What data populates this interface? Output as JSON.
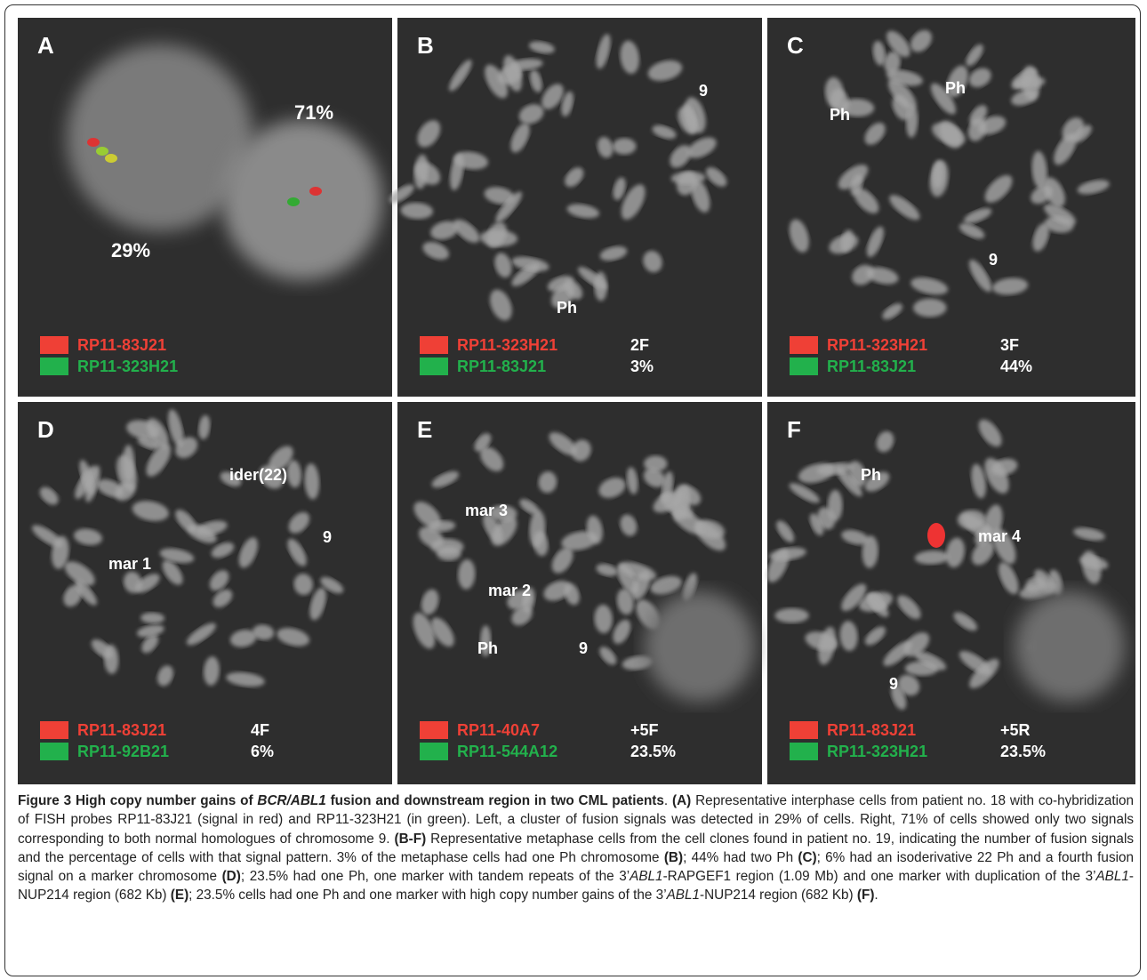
{
  "figure": {
    "panels": [
      {
        "letter": "A",
        "labels": [
          "71%",
          "29%"
        ],
        "probes": [
          {
            "name": "RP11-83J21",
            "color": "#ef4036"
          },
          {
            "name": "RP11-323H21",
            "color": "#22b14c"
          }
        ],
        "counts": []
      },
      {
        "letter": "B",
        "labels": [
          "9",
          "Ph"
        ],
        "probes": [
          {
            "name": "RP11-323H21",
            "color": "#ef4036"
          },
          {
            "name": "RP11-83J21",
            "color": "#22b14c"
          }
        ],
        "counts": [
          "2F",
          "3%"
        ]
      },
      {
        "letter": "C",
        "labels": [
          "Ph",
          "Ph",
          "9"
        ],
        "probes": [
          {
            "name": "RP11-323H21",
            "color": "#ef4036"
          },
          {
            "name": "RP11-83J21",
            "color": "#22b14c"
          }
        ],
        "counts": [
          "3F",
          "44%"
        ]
      },
      {
        "letter": "D",
        "labels": [
          "ider(22)",
          "9",
          "mar 1"
        ],
        "probes": [
          {
            "name": "RP11-83J21",
            "color": "#ef4036"
          },
          {
            "name": "RP11-92B21",
            "color": "#22b14c"
          }
        ],
        "counts": [
          "4F",
          "6%"
        ]
      },
      {
        "letter": "E",
        "labels": [
          "mar 3",
          "mar 2",
          "Ph",
          "9"
        ],
        "probes": [
          {
            "name": "RP11-40A7",
            "color": "#ef4036"
          },
          {
            "name": "RP11-544A12",
            "color": "#22b14c"
          }
        ],
        "counts": [
          "+5F",
          "23.5%"
        ]
      },
      {
        "letter": "F",
        "labels": [
          "Ph",
          "mar 4",
          "9"
        ],
        "probes": [
          {
            "name": "RP11-83J21",
            "color": "#ef4036"
          },
          {
            "name": "RP11-323H21",
            "color": "#22b14c"
          }
        ],
        "counts": [
          "+5R",
          "23.5%"
        ]
      }
    ]
  },
  "caption": {
    "parts": [
      "Figure 3 High copy number gains of ",
      "BCR/ABL1",
      " fusion and downstream region in two CML patients",
      ". ",
      "(A)",
      " Representative interphase cells from patient no. 18 with co-hybridization of FISH probes RP11-83J21 (signal in red) and RP11-323H21 (in green). Left, a cluster of fusion signals was detected in 29% of cells. Right, 71% of cells showed only two signals corresponding to both normal homologues of chromosome 9. ",
      "(B-F)",
      " Representative metaphase cells from the cell clones found in patient no. 19, indicating the number of fusion signals and the percentage of cells with that signal pattern. 3% of the metaphase cells had one Ph chromosome ",
      "(B)",
      "; 44% had two Ph ",
      "(C)",
      "; 6% had an isoderivative 22 Ph and a fourth fusion signal on a marker chromosome ",
      "(D)",
      "; 23.5% had one Ph, one marker with tandem repeats of the 3’",
      "ABL1",
      "-RAPGEF1 region (1.09 Mb) and one marker with duplication of the 3’",
      "ABL1",
      "-NUP214 region (682 Kb) ",
      "(E)",
      "; 23.5% cells had one Ph and one marker with high copy number gains of the 3’",
      "ABL1",
      "-NUP214 region (682 Kb) ",
      "(F)",
      "."
    ]
  }
}
